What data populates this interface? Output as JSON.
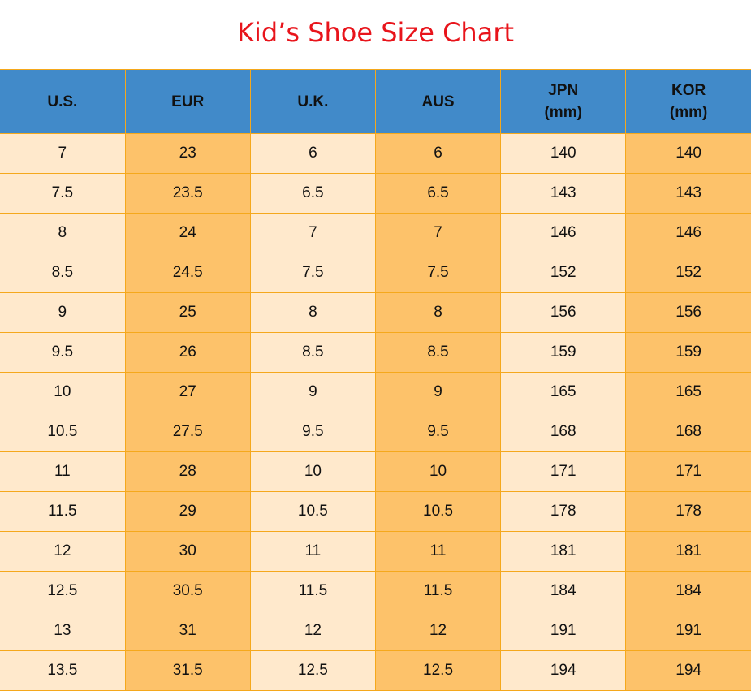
{
  "title": "Kid’s Shoe Size Chart",
  "colors": {
    "title": "#e8141b",
    "header_bg": "#418ac9",
    "light_col": "#ffe9cc",
    "dark_col": "#fdc26a",
    "border": "#f5a81c"
  },
  "chart_data": {
    "type": "table",
    "title": "Kid’s Shoe Size Chart",
    "columns": [
      [
        "U.S.",
        ""
      ],
      [
        "EUR",
        ""
      ],
      [
        "U.K.",
        ""
      ],
      [
        "AUS",
        ""
      ],
      [
        "JPN",
        "(mm)"
      ],
      [
        "KOR",
        "(mm)"
      ]
    ],
    "rows": [
      [
        "7",
        "23",
        "6",
        "6",
        "140",
        "140"
      ],
      [
        "7.5",
        "23.5",
        "6.5",
        "6.5",
        "143",
        "143"
      ],
      [
        "8",
        "24",
        "7",
        "7",
        "146",
        "146"
      ],
      [
        "8.5",
        "24.5",
        "7.5",
        "7.5",
        "152",
        "152"
      ],
      [
        "9",
        "25",
        "8",
        "8",
        "156",
        "156"
      ],
      [
        "9.5",
        "26",
        "8.5",
        "8.5",
        "159",
        "159"
      ],
      [
        "10",
        "27",
        "9",
        "9",
        "165",
        "165"
      ],
      [
        "10.5",
        "27.5",
        "9.5",
        "9.5",
        "168",
        "168"
      ],
      [
        "11",
        "28",
        "10",
        "10",
        "171",
        "171"
      ],
      [
        "11.5",
        "29",
        "10.5",
        "10.5",
        "178",
        "178"
      ],
      [
        "12",
        "30",
        "11",
        "11",
        "181",
        "181"
      ],
      [
        "12.5",
        "30.5",
        "11.5",
        "11.5",
        "184",
        "184"
      ],
      [
        "13",
        "31",
        "12",
        "12",
        "191",
        "191"
      ],
      [
        "13.5",
        "31.5",
        "12.5",
        "12.5",
        "194",
        "194"
      ]
    ]
  }
}
